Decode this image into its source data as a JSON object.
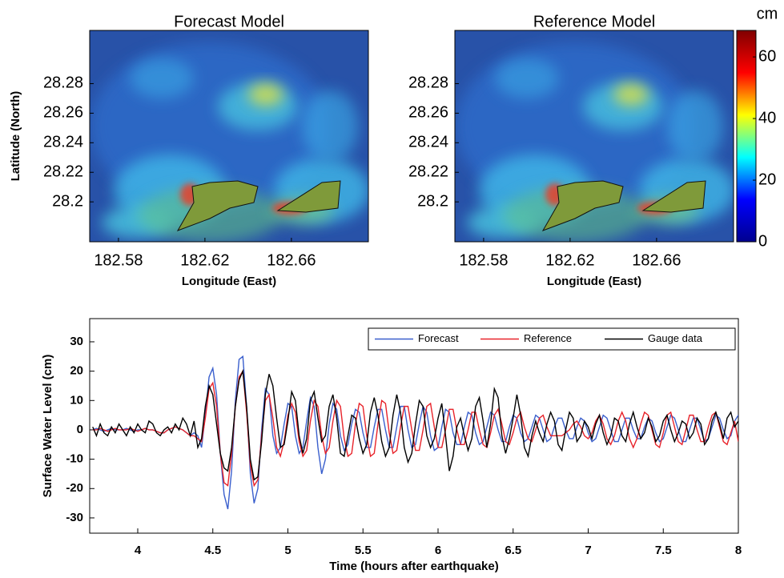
{
  "chart_data": [
    {
      "type": "map",
      "title": "Forecast Model",
      "xlabel": "Longitude (East)",
      "ylabel": "Latitude (North)",
      "xlim": [
        182.5667,
        182.6956
      ],
      "xticks": [
        182.58,
        182.62,
        182.66
      ],
      "ylim": [
        28.173,
        28.316
      ],
      "yticks": [
        28.2,
        28.22,
        28.24,
        28.26,
        28.28
      ]
    },
    {
      "type": "map",
      "title": "Reference Model",
      "xlabel": "Longitude (East)",
      "xlim": [
        182.5667,
        182.6956
      ],
      "xticks": [
        182.58,
        182.62,
        182.66
      ],
      "ylim": [
        28.173,
        28.316
      ],
      "yticks": [
        28.2,
        28.22,
        28.24,
        28.26,
        28.28
      ],
      "colorbar": {
        "label": "cm",
        "lim": [
          0,
          68.6
        ],
        "ticks": [
          0,
          20,
          40,
          60
        ],
        "colors": [
          "#00008f",
          "#0000ff",
          "#00ffff",
          "#ffff00",
          "#ff0000",
          "#800000"
        ]
      }
    },
    {
      "type": "line",
      "xlabel": "Time (hours after earthquake)",
      "ylabel": "Surface Water Level (cm)",
      "xlim": [
        3.68,
        8
      ],
      "xticks": [
        4,
        4.5,
        5,
        5.5,
        6,
        6.5,
        7,
        7.5,
        8
      ],
      "ylim": [
        -35.2,
        37.9
      ],
      "yticks": [
        30,
        20,
        10,
        0,
        -10,
        -20,
        -30
      ],
      "legend": "upper right",
      "x": [
        3.7,
        3.725,
        3.75,
        3.775,
        3.8,
        3.825,
        3.85,
        3.875,
        3.9,
        3.925,
        3.95,
        3.975,
        4,
        4.025,
        4.05,
        4.075,
        4.1,
        4.125,
        4.15,
        4.175,
        4.2,
        4.225,
        4.25,
        4.275,
        4.3,
        4.325,
        4.35,
        4.375,
        4.4,
        4.425,
        4.45,
        4.475,
        4.5,
        4.525,
        4.55,
        4.575,
        4.6,
        4.625,
        4.65,
        4.675,
        4.7,
        4.725,
        4.75,
        4.775,
        4.8,
        4.825,
        4.85,
        4.875,
        4.9,
        4.925,
        4.95,
        4.975,
        5,
        5.025,
        5.05,
        5.075,
        5.1,
        5.125,
        5.15,
        5.175,
        5.2,
        5.225,
        5.25,
        5.275,
        5.3,
        5.325,
        5.35,
        5.375,
        5.4,
        5.425,
        5.45,
        5.475,
        5.5,
        5.525,
        5.55,
        5.575,
        5.6,
        5.625,
        5.65,
        5.675,
        5.7,
        5.725,
        5.75,
        5.775,
        5.8,
        5.825,
        5.85,
        5.875,
        5.9,
        5.925,
        5.95,
        5.975,
        6,
        6.025,
        6.05,
        6.075,
        6.1,
        6.125,
        6.15,
        6.175,
        6.2,
        6.225,
        6.25,
        6.275,
        6.3,
        6.325,
        6.35,
        6.375,
        6.4,
        6.425,
        6.45,
        6.475,
        6.5,
        6.525,
        6.55,
        6.575,
        6.6,
        6.625,
        6.65,
        6.675,
        6.7,
        6.725,
        6.75,
        6.775,
        6.8,
        6.825,
        6.85,
        6.875,
        6.9,
        6.925,
        6.95,
        6.975,
        7,
        7.025,
        7.05,
        7.075,
        7.1,
        7.125,
        7.15,
        7.175,
        7.2,
        7.225,
        7.25,
        7.275,
        7.3,
        7.325,
        7.35,
        7.375,
        7.4,
        7.425,
        7.45,
        7.475,
        7.5,
        7.525,
        7.55,
        7.575,
        7.6,
        7.625,
        7.65,
        7.675,
        7.7,
        7.725,
        7.75,
        7.775,
        7.8,
        7.825,
        7.85,
        7.875,
        7.9,
        7.925,
        7.95,
        7.975,
        8
      ],
      "series": [
        {
          "name": "Forecast",
          "color": "#3a5fcd",
          "values": [
            0,
            0.5,
            0,
            -0.5,
            0,
            0.5,
            0,
            0,
            0,
            0.5,
            0,
            -0.5,
            0,
            0,
            0.5,
            0,
            0,
            -0.5,
            -1,
            -1,
            0,
            0.5,
            1,
            0.5,
            0,
            -1,
            -2,
            -1,
            -2,
            -6,
            5,
            18,
            21,
            12,
            -8,
            -22,
            -27,
            -14,
            10,
            24,
            25,
            8,
            -15,
            -25,
            -20,
            0,
            14,
            12,
            -2,
            -8,
            -6,
            2,
            9,
            8,
            -2,
            -8,
            -6,
            3,
            11,
            8,
            -6,
            -15,
            -10,
            2,
            9,
            7,
            -2,
            -7,
            -5,
            2,
            7,
            6,
            -1,
            -6,
            -6,
            1,
            7,
            7,
            0,
            -6,
            -6,
            1,
            8,
            8,
            0,
            -6,
            -5,
            2,
            8,
            6,
            -2,
            -7,
            -6,
            1,
            7,
            6,
            -1,
            -5,
            -5,
            1,
            6,
            5,
            -1,
            -5,
            -4,
            1,
            6,
            5,
            0,
            -4,
            -4,
            1,
            5,
            4,
            -1,
            -4,
            -3,
            1,
            5,
            4,
            0,
            -4,
            -3,
            1,
            4,
            4,
            0,
            -3,
            -3,
            1,
            4,
            3,
            -1,
            -4,
            -3,
            1,
            5,
            4,
            0,
            -4,
            -4,
            0,
            4,
            4,
            0,
            -3,
            -3,
            1,
            4,
            3,
            -1,
            -4,
            -3,
            1,
            5,
            4,
            0,
            -4,
            -4,
            0,
            4,
            4,
            0,
            -4,
            -3,
            1,
            5,
            4,
            0,
            -3,
            -2,
            3,
            5
          ]
        },
        {
          "name": "Reference",
          "color": "#e8232a",
          "values": [
            0,
            0,
            0.5,
            0,
            -0.5,
            0,
            0.5,
            0,
            0,
            0,
            0.5,
            0,
            -0.5,
            0,
            0.5,
            0,
            0,
            -0.5,
            -1,
            -1,
            0,
            0.5,
            1,
            0.5,
            0,
            -1,
            -2,
            -2,
            -3,
            -4,
            4,
            14,
            16,
            8,
            -8,
            -18,
            -19,
            -8,
            8,
            18,
            20,
            6,
            -12,
            -19,
            -17,
            -2,
            10,
            12,
            4,
            -6,
            -9,
            -4,
            5,
            9,
            6,
            -4,
            -9,
            -7,
            3,
            10,
            8,
            -2,
            -8,
            -6,
            3,
            10,
            8,
            -3,
            -9,
            -8,
            2,
            9,
            8,
            -2,
            -9,
            -8,
            2,
            10,
            9,
            -1,
            -8,
            -7,
            1,
            8,
            8,
            0,
            -7,
            -7,
            0,
            8,
            9,
            1,
            -6,
            -6,
            0,
            7,
            7,
            0,
            -5,
            -5,
            0,
            6,
            6,
            0,
            -5,
            -6,
            -1,
            5,
            7,
            2,
            -4,
            -5,
            -1,
            4,
            6,
            1,
            -3,
            -4,
            0,
            4,
            5,
            1,
            -2,
            -2,
            -2,
            -2,
            -1,
            0,
            2,
            3,
            1,
            -2,
            -3,
            -1,
            3,
            5,
            2,
            -3,
            -5,
            -2,
            3,
            6,
            3,
            -3,
            -6,
            -3,
            2,
            6,
            5,
            0,
            -5,
            -6,
            -1,
            5,
            6,
            1,
            -4,
            -5,
            0,
            5,
            5,
            0,
            -4,
            -4,
            1,
            5,
            6,
            1,
            -4,
            -5,
            -1,
            3,
            -4
          ]
        },
        {
          "name": "Gauge data",
          "color": "#000000",
          "values": [
            1,
            -2,
            2,
            -1,
            -2,
            1,
            -1,
            2,
            0,
            -2,
            1,
            -1,
            2,
            0,
            -1,
            3,
            2,
            -1,
            -2,
            0,
            1,
            -1,
            2,
            0,
            4,
            2,
            -2,
            3,
            -6,
            -3,
            8,
            15,
            12,
            2,
            -8,
            -13,
            -14,
            -6,
            8,
            17,
            20,
            8,
            -10,
            -17,
            -16,
            -4,
            12,
            19,
            15,
            4,
            -6,
            -5,
            3,
            13,
            10,
            -2,
            -8,
            -3,
            10,
            13,
            4,
            -4,
            -2,
            8,
            12,
            4,
            -8,
            -9,
            -2,
            5,
            4,
            -3,
            -8,
            -5,
            6,
            11,
            5,
            -4,
            -9,
            -6,
            5,
            12,
            6,
            -6,
            -11,
            -8,
            2,
            10,
            8,
            -2,
            -6,
            -3,
            4,
            9,
            -2,
            -14,
            -9,
            1,
            4,
            -2,
            -7,
            -3,
            8,
            11,
            3,
            -6,
            2,
            14,
            11,
            -2,
            -8,
            -3,
            4,
            12,
            5,
            -6,
            -9,
            -2,
            3,
            -1,
            -4,
            2,
            6,
            3,
            -5,
            -7,
            0,
            6,
            4,
            -4,
            -2,
            3,
            1,
            -3,
            2,
            5,
            -1,
            -5,
            -2,
            4,
            3,
            -2,
            -4,
            2,
            6,
            1,
            -3,
            -1,
            4,
            1,
            -4,
            -2,
            3,
            5,
            0,
            -4,
            -1,
            3,
            2,
            -3,
            -1,
            4,
            2,
            -5,
            -3,
            3,
            6,
            2,
            -3,
            4,
            6,
            1,
            3
          ]
        }
      ]
    }
  ]
}
